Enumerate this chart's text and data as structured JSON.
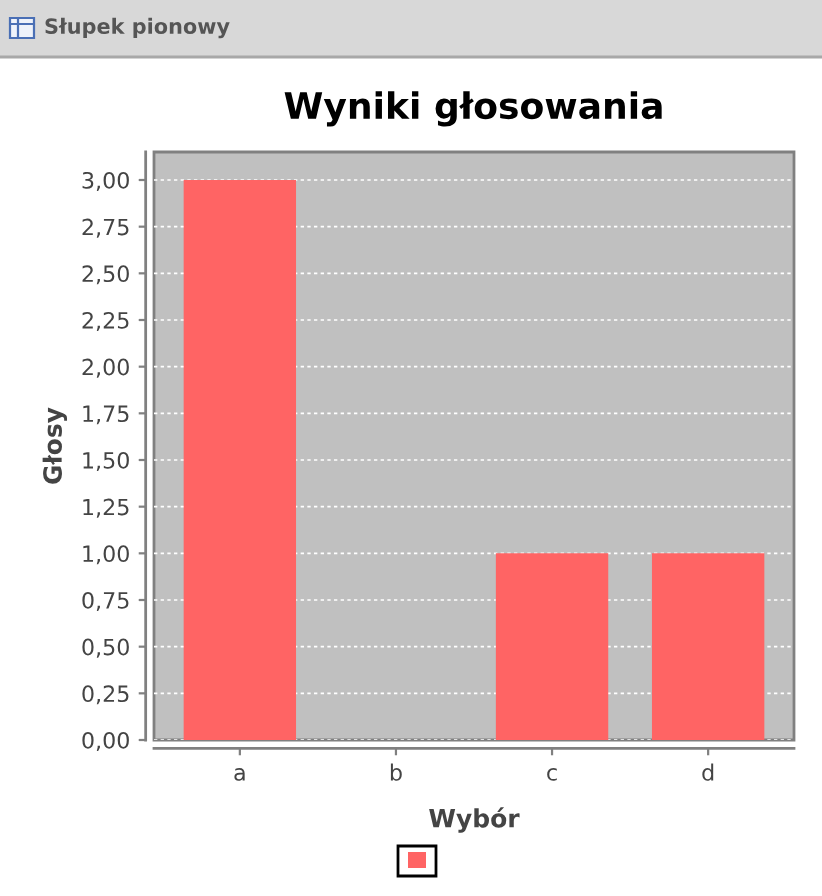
{
  "chart_data": {
    "type": "bar",
    "title": "Wyniki głosowania",
    "xlabel": "Wybór",
    "ylabel": "Głosy",
    "annotations": [
      "Słupek pionowy"
    ],
    "categories": [
      "a",
      "b",
      "c",
      "d"
    ],
    "series": [
      {
        "color": "#ff6464",
        "values": [
          3,
          0,
          1,
          1
        ]
      }
    ],
    "ylim": [
      0,
      3.15
    ],
    "yticks": [
      {
        "value": 0,
        "label": "0,00"
      },
      {
        "value": 0.25,
        "label": "0,25"
      },
      {
        "value": 0.5,
        "label": "0,50"
      },
      {
        "value": 0.75,
        "label": "0,75"
      },
      {
        "value": 1,
        "label": "1,00"
      },
      {
        "value": 1.25,
        "label": "1,25"
      },
      {
        "value": 1.5,
        "label": "1,50"
      },
      {
        "value": 1.75,
        "label": "1,75"
      },
      {
        "value": 2,
        "label": "2,00"
      },
      {
        "value": 2.25,
        "label": "2,25"
      },
      {
        "value": 2.5,
        "label": "2,50"
      },
      {
        "value": 2.75,
        "label": "2,75"
      },
      {
        "value": 3,
        "label": "3,00"
      }
    ],
    "grid": "y"
  }
}
